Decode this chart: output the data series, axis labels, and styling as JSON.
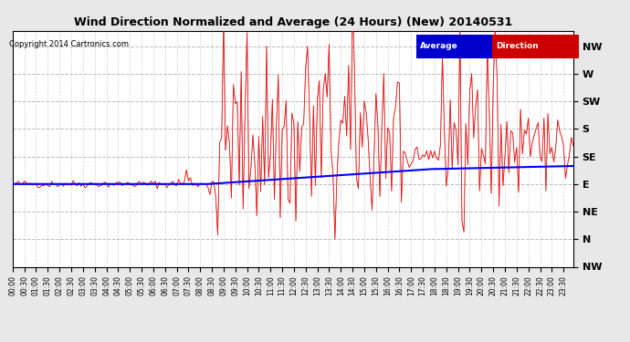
{
  "title": "Wind Direction Normalized and Average (24 Hours) (New) 20140531",
  "copyright": "Copyright 2014 Cartronics.com",
  "background_color": "#e8e8e8",
  "plot_bg_color": "#ffffff",
  "grid_color": "#aaaaaa",
  "ytick_labels": [
    "NW",
    "W",
    "SW",
    "S",
    "SE",
    "E",
    "NE",
    "N",
    "NW"
  ],
  "ytick_values": [
    315,
    270,
    225,
    180,
    135,
    90,
    45,
    0,
    -45
  ],
  "ylim": [
    -45,
    340
  ],
  "avg_line_color": "#0000ff",
  "dir_line_color": "#ff0000",
  "dark_line_color": "#333333",
  "n_points": 288
}
